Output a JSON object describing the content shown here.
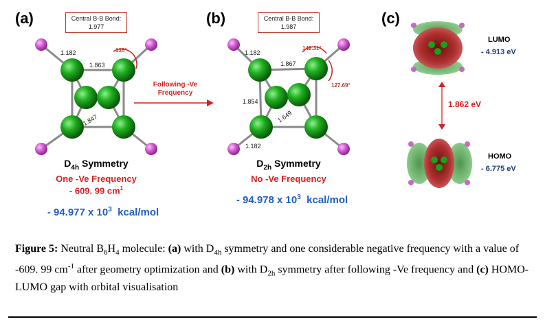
{
  "panel_a": {
    "label": "(a)",
    "bond_box_line1": "Central B-B Bond:",
    "bond_box_line2": "1.977",
    "len_bh": "1.182",
    "len_top": "1.863",
    "len_diag": "1.847",
    "angle": "135°",
    "symmetry_main": "D",
    "symmetry_sub": "4h",
    "symmetry_rest": " Symmetry",
    "freq_line1": "One -Ve Frequency",
    "freq_line2": "- 609. 99 cm",
    "freq_sup": "1",
    "energy_main": "- 94.977 x 10",
    "energy_sup": "3",
    "energy_unit": "  kcal/mol"
  },
  "arrow_label_1": "Following -Ve",
  "arrow_label_2": "Frequency",
  "panel_b": {
    "label": "(b)",
    "bond_box_line1": "Central B-B Bond:",
    "bond_box_line2": "1.987",
    "len_bh_top": "1.182",
    "len_top": "1.867",
    "len_side": "1.854",
    "len_diag": "1.649",
    "len_bh_bottom": "1.182",
    "angle1": "142.31°",
    "angle2": "127.69°",
    "symmetry_main": "D",
    "symmetry_sub": "2h",
    "symmetry_rest": " Symmetry",
    "freq_line1": "No -Ve Frequency",
    "energy_main": "- 94.978 x 10",
    "energy_sup": "3",
    "energy_unit": "  kcal/mol"
  },
  "panel_c": {
    "label": "(c)",
    "lumo_title": "LUMO",
    "lumo_value": "- 4.913 eV",
    "gap_value": "1.862 eV",
    "homo_title": "HOMO",
    "homo_value": "- 6.775 eV"
  },
  "caption": {
    "fig_label": "Figure 5:",
    "t1": " Neutral B",
    "s1": "6",
    "t2": "H",
    "s2": "4",
    "t3": " molecule: ",
    "a_label": "(a)",
    "t4": " with D",
    "s3": "4h",
    "t5": " symmetry and one considerable negative frequency with a value of -609. 99 cm",
    "sup1": "-1",
    "t6": " after geometry optimization and ",
    "b_label": "(b)",
    "t7": " with D",
    "s4": "2h",
    "t8": " symmetry after following -Ve frequency and ",
    "c_label": "(c)",
    "t9": " HOMO-LUMO gap with orbital visualisation"
  },
  "colors": {
    "boron": "#1a9a1a",
    "hydrogen": "#d65ad6",
    "accent_red": "#d81f1f",
    "accent_blue": "#1f5fc8"
  }
}
